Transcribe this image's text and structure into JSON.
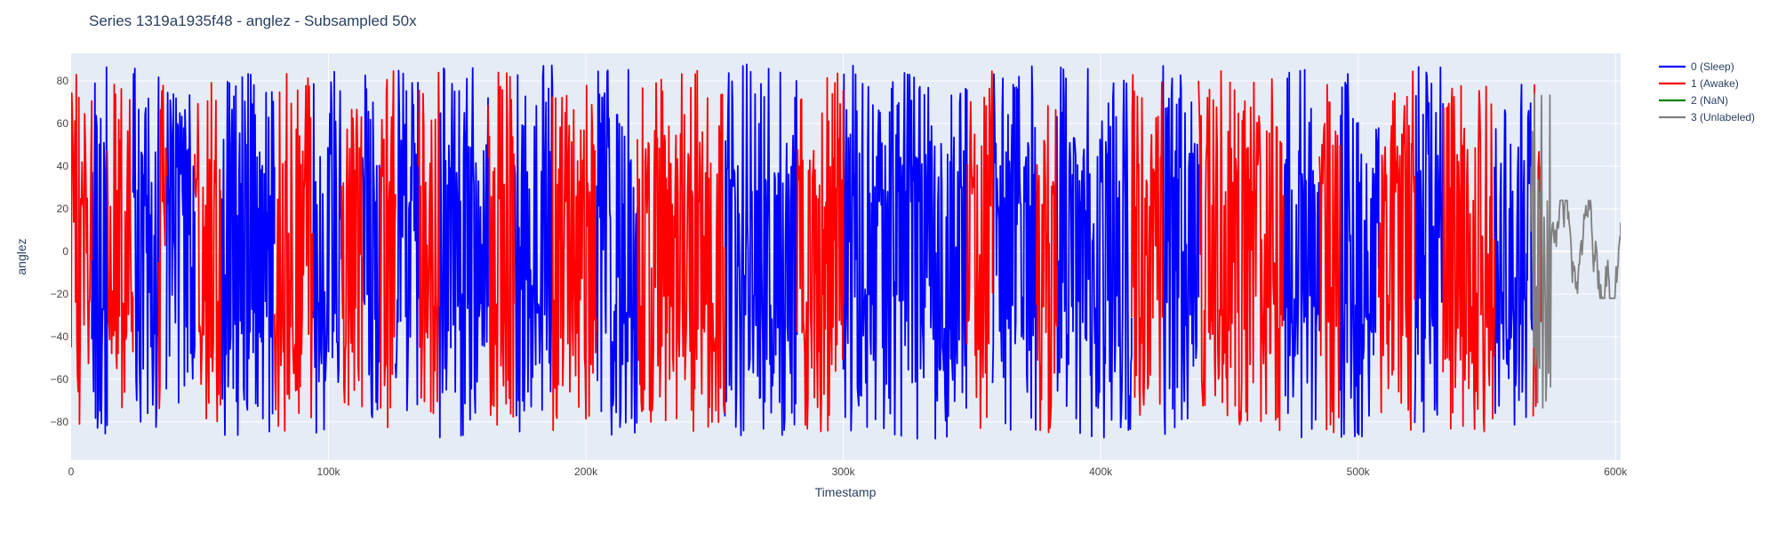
{
  "chart_data": {
    "type": "line",
    "title": "Series 1319a1935f48 - anglez - Subsampled 50x",
    "xlabel": "Timestamp",
    "ylabel": "anglez",
    "xlim": [
      0,
      602000
    ],
    "ylim": [
      -98,
      93
    ],
    "x_ticks": [
      {
        "value": 0,
        "label": "0"
      },
      {
        "value": 100000,
        "label": "100k"
      },
      {
        "value": 200000,
        "label": "200k"
      },
      {
        "value": 300000,
        "label": "300k"
      },
      {
        "value": 400000,
        "label": "400k"
      },
      {
        "value": 500000,
        "label": "500k"
      },
      {
        "value": 600000,
        "label": "600k"
      }
    ],
    "y_ticks": [
      {
        "value": 80,
        "label": "80"
      },
      {
        "value": 60,
        "label": "60"
      },
      {
        "value": 40,
        "label": "40"
      },
      {
        "value": 20,
        "label": "20"
      },
      {
        "value": 0,
        "label": "0"
      },
      {
        "value": -20,
        "label": "−20"
      },
      {
        "value": -40,
        "label": "−40"
      },
      {
        "value": -60,
        "label": "−60"
      },
      {
        "value": -80,
        "label": "−80"
      }
    ],
    "grid": true,
    "legend_position": "top-right",
    "background_color": "#e5ecf6",
    "series": [
      {
        "name": "0 (Sleep)",
        "color": "#0000ff",
        "amplitude": 88,
        "segments": [
          [
            8000,
            14000
          ],
          [
            24000,
            34000
          ],
          [
            37000,
            48000
          ],
          [
            58000,
            79000
          ],
          [
            94000,
            105000
          ],
          [
            113000,
            120000
          ],
          [
            126000,
            135000
          ],
          [
            143000,
            162000
          ],
          [
            172000,
            187000
          ],
          [
            204000,
            220000
          ],
          [
            254000,
            282000
          ],
          [
            300000,
            348000
          ],
          [
            358000,
            375000
          ],
          [
            383000,
            412000
          ],
          [
            424000,
            438000
          ],
          [
            471000,
            485000
          ],
          [
            493000,
            508000
          ],
          [
            522000,
            533000
          ],
          [
            553000,
            568000
          ]
        ]
      },
      {
        "name": "1 (Awake)",
        "color": "#ff0000",
        "amplitude": 85,
        "segments": [
          [
            0,
            8000
          ],
          [
            14000,
            24000
          ],
          [
            34000,
            37000
          ],
          [
            48000,
            58000
          ],
          [
            79000,
            94000
          ],
          [
            105000,
            113000
          ],
          [
            120000,
            126000
          ],
          [
            135000,
            143000
          ],
          [
            162000,
            172000
          ],
          [
            187000,
            204000
          ],
          [
            220000,
            254000
          ],
          [
            282000,
            300000
          ],
          [
            348000,
            358000
          ],
          [
            375000,
            383000
          ],
          [
            412000,
            424000
          ],
          [
            438000,
            471000
          ],
          [
            485000,
            493000
          ],
          [
            508000,
            522000
          ],
          [
            533000,
            553000
          ],
          [
            568000,
            571000
          ]
        ]
      },
      {
        "name": "2 (NaN)",
        "color": "#008000",
        "segments": []
      },
      {
        "name": "3 (Unlabeled)",
        "color": "#808080",
        "amplitude": 30,
        "segments": [
          [
            567000,
            602000
          ]
        ]
      }
    ]
  }
}
